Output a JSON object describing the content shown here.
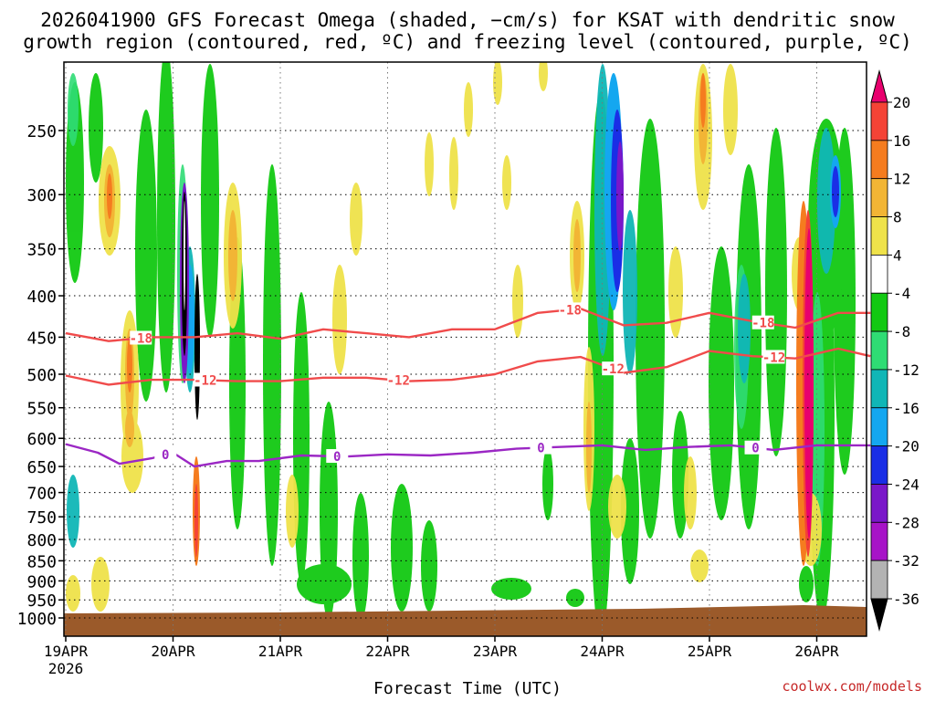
{
  "title": {
    "line1": "2026041900 GFS Forecast Omega (shaded, −cm/s) for KSAT with dendritic snow",
    "line2": "growth region (contoured, red, ºC) and freezing level (contoured, purple, ºC)"
  },
  "credit": "coolwx.com/models",
  "chart_data": {
    "type": "heatmap",
    "xlabel": "Forecast Time (UTC)",
    "ylabel": "",
    "x_ticks": [
      "19APR",
      "20APR",
      "21APR",
      "22APR",
      "23APR",
      "24APR",
      "25APR",
      "26APR"
    ],
    "x_tick_sub": "2026",
    "x_range_days": [
      0,
      7.5
    ],
    "y_ticks": [
      250,
      300,
      350,
      400,
      450,
      500,
      550,
      600,
      650,
      700,
      750,
      800,
      850,
      900,
      950,
      1000
    ],
    "y_range_hpa": [
      200,
      1025
    ],
    "grid": true,
    "colorbar": {
      "labels": [
        "20",
        "16",
        "12",
        "8",
        "4",
        "-4",
        "-8",
        "-12",
        "-16",
        "-20",
        "-24",
        "-28",
        "-32",
        "-36"
      ],
      "colors": [
        "#e8006e",
        "#f44336",
        "#f57c1f",
        "#f2b535",
        "#efe24a",
        "#ffffff",
        "#12c912",
        "#2fdc74",
        "#10b6b6",
        "#14a7f0",
        "#1a2ee6",
        "#7a17c9",
        "#a713c7",
        "#b3b3b3",
        "#000000"
      ]
    },
    "contours": [
      {
        "label": "-18",
        "color": "#f04b4b",
        "points": [
          [
            0,
            445
          ],
          [
            0.4,
            455
          ],
          [
            0.8,
            450
          ],
          [
            1.2,
            450
          ],
          [
            1.6,
            445
          ],
          [
            2.0,
            452
          ],
          [
            2.4,
            440
          ],
          [
            2.8,
            445
          ],
          [
            3.2,
            450
          ],
          [
            3.6,
            440
          ],
          [
            4.0,
            440
          ],
          [
            4.4,
            420
          ],
          [
            4.8,
            415
          ],
          [
            5.2,
            435
          ],
          [
            5.6,
            432
          ],
          [
            6.0,
            420
          ],
          [
            6.4,
            430
          ],
          [
            6.8,
            438
          ],
          [
            7.2,
            420
          ],
          [
            7.5,
            420
          ]
        ],
        "label_at": [
          0.7,
          4.7,
          6.5
        ]
      },
      {
        "label": "-12",
        "color": "#f04b4b",
        "points": [
          [
            0,
            502
          ],
          [
            0.4,
            515
          ],
          [
            0.8,
            508
          ],
          [
            1.2,
            508
          ],
          [
            1.6,
            510
          ],
          [
            2.0,
            510
          ],
          [
            2.4,
            505
          ],
          [
            2.8,
            505
          ],
          [
            3.2,
            510
          ],
          [
            3.6,
            508
          ],
          [
            4.0,
            500
          ],
          [
            4.4,
            482
          ],
          [
            4.8,
            476
          ],
          [
            5.2,
            498
          ],
          [
            5.6,
            490
          ],
          [
            6.0,
            468
          ],
          [
            6.4,
            475
          ],
          [
            6.8,
            478
          ],
          [
            7.2,
            465
          ],
          [
            7.5,
            475
          ]
        ],
        "label_at": [
          1.3,
          3.1,
          5.1,
          6.6
        ]
      },
      {
        "label": "0",
        "color": "#9b27c4",
        "points": [
          [
            0,
            610
          ],
          [
            0.3,
            625
          ],
          [
            0.5,
            645
          ],
          [
            0.8,
            635
          ],
          [
            1.0,
            625
          ],
          [
            1.2,
            650
          ],
          [
            1.5,
            640
          ],
          [
            1.8,
            640
          ],
          [
            2.2,
            630
          ],
          [
            2.6,
            632
          ],
          [
            3.0,
            628
          ],
          [
            3.4,
            630
          ],
          [
            3.8,
            625
          ],
          [
            4.2,
            618
          ],
          [
            4.6,
            615
          ],
          [
            5.0,
            612
          ],
          [
            5.4,
            620
          ],
          [
            5.8,
            615
          ],
          [
            6.2,
            612
          ],
          [
            6.6,
            620
          ],
          [
            7.0,
            612
          ],
          [
            7.5,
            612
          ]
        ],
        "label_at": [
          0.93,
          2.53,
          4.43,
          6.43
        ]
      }
    ]
  }
}
